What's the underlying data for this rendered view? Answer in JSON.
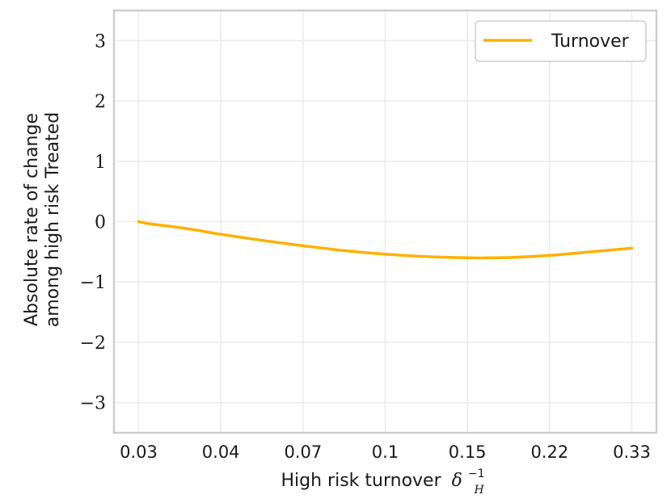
{
  "chart_data": {
    "type": "line",
    "title": "",
    "xlabel": "High risk turnover",
    "xlabel_symbol": "δ",
    "xlabel_sub": "H",
    "xlabel_sup": "−1",
    "ylabel_line1": "Absolute rate of change",
    "ylabel_line2": "among high risk Treated",
    "ylim": [
      -3.5,
      3.5
    ],
    "yticks": [
      3,
      2,
      1,
      0,
      -1,
      -2,
      -3
    ],
    "ytick_labels": [
      "3",
      "2",
      "1",
      "0",
      "−1",
      "−2",
      "−3"
    ],
    "xticks_index": [
      0,
      1,
      2,
      3,
      4,
      5,
      6
    ],
    "xtick_labels": [
      "0.03",
      "0.04",
      "0.07",
      "0.1",
      "0.15",
      "0.22",
      "0.33"
    ],
    "xlim_index": [
      -0.3,
      6.3
    ],
    "grid": true,
    "legend_position": "top-right",
    "series": [
      {
        "name": "Turnover",
        "color": "#ffb000",
        "x_index": [
          0,
          0.15,
          0.4,
          0.7,
          1.0,
          1.5,
          2.0,
          2.5,
          3.0,
          3.5,
          4.0,
          4.3,
          4.6,
          5.0,
          5.5,
          6.0
        ],
        "values": [
          0.0,
          -0.04,
          -0.08,
          -0.14,
          -0.21,
          -0.31,
          -0.4,
          -0.48,
          -0.54,
          -0.58,
          -0.6,
          -0.6,
          -0.59,
          -0.56,
          -0.5,
          -0.44
        ]
      }
    ]
  }
}
